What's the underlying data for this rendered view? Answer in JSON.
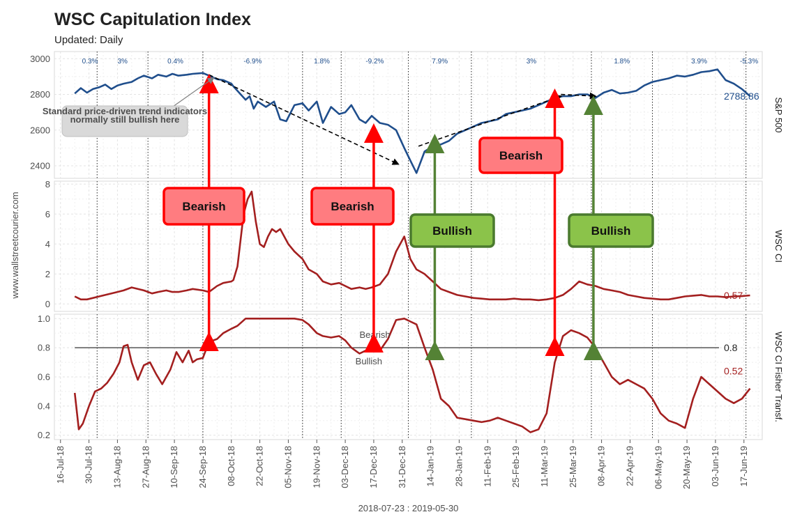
{
  "header": {
    "title": "WSC Capitulation Index",
    "subtitle": "Updated: Daily"
  },
  "watermark": "www.wallstreetcourier.com",
  "date_range_label": "2018-07-23 : 2019-05-30",
  "colors": {
    "spx": "#1f4e8c",
    "ci": "#a31f1f",
    "red_arrow": "#ff0000",
    "green_arrow": "#548235",
    "bearish_box_fill": "#ff7c80",
    "bullish_box_fill": "#8bc34a"
  },
  "chart_data": {
    "type": "line",
    "x_ticks": [
      "16-Jul-18",
      "30-Jul-18",
      "13-Aug-18",
      "27-Aug-18",
      "10-Sep-18",
      "24-Sep-18",
      "08-Oct-18",
      "22-Oct-18",
      "05-Nov-18",
      "19-Nov-18",
      "03-Dec-18",
      "17-Dec-18",
      "31-Dec-18",
      "14-Jan-19",
      "28-Jan-19",
      "11-Feb-19",
      "25-Feb-19",
      "11-Mar-19",
      "25-Mar-19",
      "08-Apr-19",
      "22-Apr-19",
      "06-May-19",
      "20-May-19",
      "03-Jun-19",
      "17-Jun-19"
    ],
    "x_range_days": [
      -10,
      338
    ],
    "segment_boundaries_days": [
      11,
      36,
      63,
      112,
      131,
      164,
      195,
      254,
      284,
      330
    ],
    "segment_returns": [
      "0.3%",
      "3%",
      "0.4%",
      "-6.9%",
      "1.8%",
      "-9.2%",
      "7.9%",
      "3%",
      "1.8%",
      "3.9%",
      "-5.3%"
    ],
    "panels": [
      {
        "name": "S&P 500",
        "ylim": [
          2330,
          3040
        ],
        "yticks": [
          2400,
          2600,
          2800,
          3000
        ],
        "last_value": "2788.86",
        "series": [
          {
            "x": [
              0,
              3,
              6,
              9,
              12,
              15,
              18,
              21,
              24,
              28,
              31,
              34,
              38,
              41,
              45,
              48,
              51,
              55,
              58,
              63,
              66,
              70,
              73,
              77,
              78,
              80,
              84,
              86,
              88,
              90,
              94,
              98,
              101,
              104,
              108,
              112,
              115,
              119,
              122,
              126,
              130,
              133,
              136,
              140,
              143,
              146,
              150,
              154,
              158,
              162,
              165,
              168,
              172,
              176,
              180,
              184,
              188,
              192,
              196,
              200,
              204,
              208,
              212,
              216,
              220,
              224,
              228,
              232,
              236,
              240,
              244,
              248,
              252,
              256,
              260,
              264,
              268,
              272,
              276,
              280,
              284,
              288,
              292,
              296,
              300,
              304,
              308,
              312,
              316,
              320,
              324,
              328,
              332
            ],
            "y": [
              2805,
              2835,
              2810,
              2830,
              2840,
              2855,
              2830,
              2850,
              2860,
              2870,
              2890,
              2905,
              2890,
              2910,
              2900,
              2915,
              2905,
              2910,
              2915,
              2920,
              2905,
              2885,
              2880,
              2860,
              2845,
              2820,
              2770,
              2790,
              2720,
              2760,
              2730,
              2760,
              2660,
              2650,
              2740,
              2750,
              2710,
              2760,
              2640,
              2730,
              2690,
              2700,
              2740,
              2660,
              2640,
              2680,
              2640,
              2630,
              2600,
              2500,
              2430,
              2360,
              2480,
              2510,
              2520,
              2540,
              2580,
              2600,
              2620,
              2640,
              2650,
              2660,
              2690,
              2700,
              2710,
              2720,
              2740,
              2760,
              2780,
              2790,
              2790,
              2800,
              2800,
              2780,
              2810,
              2825,
              2805,
              2810,
              2820,
              2850,
              2870,
              2880,
              2890,
              2905,
              2900,
              2910,
              2925,
              2930,
              2940,
              2880,
              2860,
              2830,
              2790
            ]
          }
        ]
      },
      {
        "name": "WSC CI",
        "ylim": [
          -0.5,
          8.2
        ],
        "yticks": [
          0,
          2,
          4,
          6,
          8
        ],
        "last_value": "0.57",
        "series": [
          {
            "x": [
              0,
              3,
              6,
              9,
              12,
              15,
              18,
              21,
              24,
              28,
              31,
              34,
              38,
              41,
              45,
              48,
              51,
              55,
              58,
              63,
              66,
              70,
              73,
              77,
              78,
              80,
              83,
              85,
              87,
              89,
              91,
              93,
              95,
              97,
              99,
              101,
              103,
              105,
              108,
              112,
              115,
              119,
              122,
              126,
              130,
              133,
              136,
              140,
              143,
              146,
              150,
              154,
              158,
              162,
              165,
              168,
              172,
              176,
              180,
              184,
              188,
              192,
              196,
              200,
              204,
              208,
              212,
              216,
              220,
              224,
              228,
              232,
              236,
              240,
              244,
              248,
              252,
              256,
              260,
              264,
              268,
              272,
              276,
              280,
              284,
              288,
              292,
              296,
              300,
              304,
              308,
              312,
              316,
              320,
              324,
              328,
              332
            ],
            "y": [
              0.5,
              0.3,
              0.3,
              0.4,
              0.5,
              0.6,
              0.7,
              0.8,
              0.9,
              1.1,
              1.0,
              0.9,
              0.7,
              0.8,
              0.9,
              0.8,
              0.8,
              0.9,
              1.0,
              0.9,
              0.8,
              1.2,
              1.4,
              1.5,
              1.6,
              2.5,
              6.0,
              7.0,
              7.5,
              5.5,
              4.0,
              3.8,
              4.5,
              5.0,
              4.8,
              5.0,
              4.5,
              4.0,
              3.5,
              3.0,
              2.3,
              2.0,
              1.5,
              1.3,
              1.4,
              1.2,
              1.0,
              1.1,
              1.0,
              1.1,
              1.3,
              2.0,
              3.5,
              4.5,
              3.0,
              2.3,
              2.0,
              1.5,
              1.0,
              0.8,
              0.6,
              0.5,
              0.4,
              0.35,
              0.3,
              0.3,
              0.3,
              0.35,
              0.3,
              0.3,
              0.25,
              0.3,
              0.4,
              0.6,
              1.0,
              1.5,
              1.3,
              1.2,
              1.0,
              0.9,
              0.8,
              0.6,
              0.5,
              0.4,
              0.35,
              0.3,
              0.3,
              0.4,
              0.5,
              0.55,
              0.6,
              0.5,
              0.5,
              0.45,
              0.5,
              0.52,
              0.57
            ]
          }
        ]
      },
      {
        "name": "WSC CI Fisher Transf.",
        "ylim": [
          0.17,
          1.03
        ],
        "yticks": [
          0.2,
          0.4,
          0.6,
          0.8,
          1.0
        ],
        "last_value": "0.52",
        "threshold": {
          "value": 0.8,
          "label": "0.8",
          "above_label": "Bearish",
          "below_label": "Bullish"
        },
        "series": [
          {
            "x": [
              0,
              2,
              4,
              7,
              10,
              13,
              16,
              19,
              22,
              24,
              26,
              28,
              31,
              34,
              37,
              40,
              43,
              47,
              50,
              53,
              56,
              58,
              60,
              63,
              66,
              70,
              73,
              77,
              80,
              84,
              88,
              90,
              92,
              94,
              97,
              100,
              104,
              108,
              112,
              115,
              119,
              122,
              126,
              130,
              133,
              136,
              140,
              143,
              146,
              150,
              154,
              158,
              162,
              165,
              168,
              172,
              176,
              180,
              184,
              188,
              192,
              196,
              200,
              204,
              208,
              212,
              216,
              220,
              224,
              228,
              232,
              236,
              240,
              244,
              248,
              252,
              256,
              260,
              264,
              268,
              272,
              276,
              280,
              284,
              288,
              292,
              296,
              300,
              304,
              308,
              312,
              316,
              320,
              324,
              328,
              332
            ],
            "y": [
              0.49,
              0.24,
              0.28,
              0.4,
              0.5,
              0.52,
              0.56,
              0.62,
              0.7,
              0.81,
              0.82,
              0.7,
              0.58,
              0.68,
              0.7,
              0.62,
              0.55,
              0.65,
              0.77,
              0.7,
              0.78,
              0.7,
              0.72,
              0.73,
              0.84,
              0.86,
              0.9,
              0.93,
              0.95,
              1.0,
              1.0,
              1.0,
              1.0,
              1.0,
              1.0,
              1.0,
              1.0,
              1.0,
              0.99,
              0.96,
              0.9,
              0.88,
              0.87,
              0.88,
              0.85,
              0.8,
              0.76,
              0.78,
              0.8,
              0.78,
              0.86,
              0.99,
              1.0,
              0.98,
              0.96,
              0.8,
              0.65,
              0.45,
              0.4,
              0.32,
              0.31,
              0.3,
              0.29,
              0.3,
              0.32,
              0.3,
              0.28,
              0.26,
              0.22,
              0.24,
              0.35,
              0.7,
              0.88,
              0.92,
              0.9,
              0.87,
              0.8,
              0.7,
              0.6,
              0.55,
              0.58,
              0.55,
              0.52,
              0.45,
              0.35,
              0.3,
              0.28,
              0.25,
              0.45,
              0.6,
              0.55,
              0.5,
              0.45,
              0.42,
              0.45,
              0.52
            ]
          }
        ]
      }
    ],
    "annotations": {
      "callouts": [
        {
          "text": "Bearish",
          "kind": "bearish"
        },
        {
          "text": "Bearish",
          "kind": "bearish"
        },
        {
          "text": "Bullish",
          "kind": "bullish"
        },
        {
          "text": "Bearish",
          "kind": "bearish"
        },
        {
          "text": "Bullish",
          "kind": "bullish"
        }
      ],
      "signals": [
        {
          "kind": "bearish",
          "day": 66
        },
        {
          "kind": "bearish",
          "day": 147
        },
        {
          "kind": "bullish",
          "day": 177
        },
        {
          "kind": "bearish",
          "day": 236
        },
        {
          "kind": "bullish",
          "day": 255
        }
      ],
      "note": "Standard price-driven trend indicators normally still bullish here",
      "trend_lines": [
        {
          "from": [
            66,
            2910
          ],
          "to": [
            159,
            2410
          ]
        },
        {
          "from": [
            169,
            2510
          ],
          "to": [
            239,
            2790
          ]
        },
        {
          "from": [
            239,
            2800
          ],
          "to": [
            256,
            2790
          ]
        }
      ]
    }
  }
}
